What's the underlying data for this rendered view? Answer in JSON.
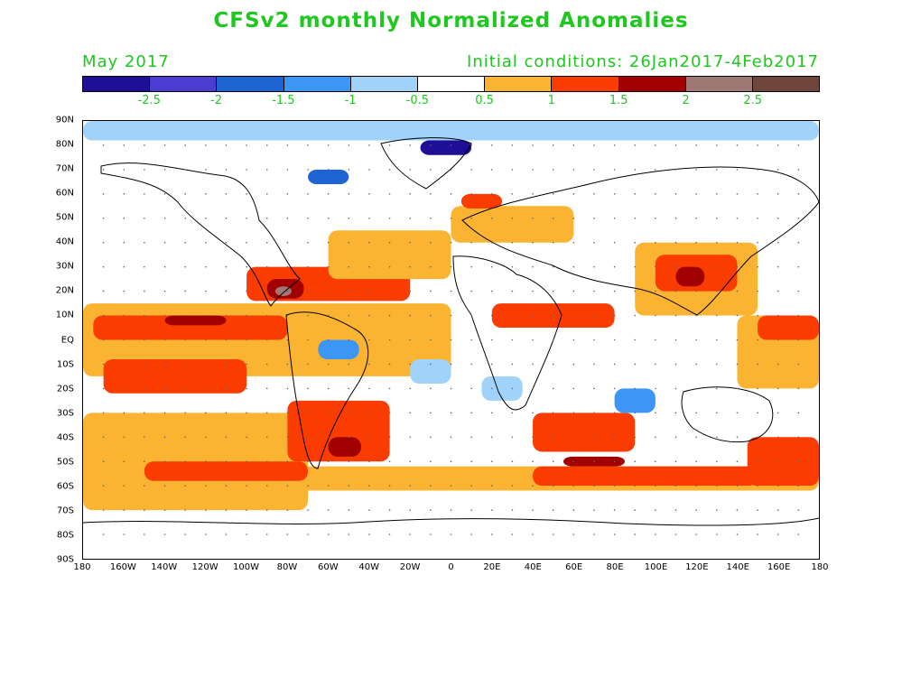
{
  "title": "CFSv2 monthly Normalized Anomalies",
  "valid_month": "May 2017",
  "initial_conditions": "Initial conditions: 26Jan2017-4Feb2017",
  "colorbar": {
    "colors": [
      "#1e0f96",
      "#4b3cd2",
      "#1e64d2",
      "#3c96f5",
      "#a0d2fa",
      "#ffffff",
      "#fab432",
      "#fa3c00",
      "#a00000",
      "#a07873",
      "#6e463c"
    ],
    "labels": [
      "-2.5",
      "-2",
      "-1.5",
      "-1",
      "-0.5",
      "0.5",
      "1",
      "1.5",
      "2",
      "2.5"
    ]
  },
  "axes": {
    "lat_labels": [
      "90N",
      "80N",
      "70N",
      "60N",
      "50N",
      "40N",
      "30N",
      "20N",
      "10N",
      "EQ",
      "10S",
      "20S",
      "30S",
      "40S",
      "50S",
      "60S",
      "70S",
      "80S",
      "90S"
    ],
    "lon_labels": [
      "180",
      "160W",
      "140W",
      "120W",
      "100W",
      "80W",
      "60W",
      "40W",
      "20W",
      "0",
      "20E",
      "40E",
      "60E",
      "80E",
      "100E",
      "120E",
      "140E",
      "160E",
      "180"
    ]
  },
  "anomaly_regions": [
    {
      "level": 0.5,
      "color": "#fab432",
      "lon": -180,
      "lat": 15,
      "w": 180,
      "h": 30
    },
    {
      "level": 1,
      "color": "#fa3c00",
      "lon": -175,
      "lat": 10,
      "w": 95,
      "h": 10
    },
    {
      "level": 0.5,
      "color": "#fab432",
      "lon": -180,
      "lat": -30,
      "w": 110,
      "h": 40
    },
    {
      "level": 1,
      "color": "#fa3c00",
      "lon": -170,
      "lat": -8,
      "w": 70,
      "h": 14
    },
    {
      "level": 2,
      "color": "#a00000",
      "lon": -140,
      "lat": 10,
      "w": 30,
      "h": 4
    },
    {
      "level": 1,
      "color": "#fa3c00",
      "lon": -100,
      "lat": 30,
      "w": 80,
      "h": 14
    },
    {
      "level": 2,
      "color": "#a00000",
      "lon": -90,
      "lat": 25,
      "w": 18,
      "h": 8
    },
    {
      "level": 2.5,
      "color": "#a07873",
      "lon": -86,
      "lat": 22,
      "w": 8,
      "h": 4
    },
    {
      "level": 0.5,
      "color": "#fab432",
      "lon": -60,
      "lat": 45,
      "w": 60,
      "h": 20
    },
    {
      "level": 1,
      "color": "#fa3c00",
      "lon": -80,
      "lat": -25,
      "w": 50,
      "h": 25
    },
    {
      "level": 2,
      "color": "#a00000",
      "lon": -60,
      "lat": -40,
      "w": 16,
      "h": 8
    },
    {
      "level": 0.5,
      "color": "#fab432",
      "lon": -180,
      "lat": -52,
      "w": 360,
      "h": 10
    },
    {
      "level": 1,
      "color": "#fa3c00",
      "lon": -150,
      "lat": -50,
      "w": 80,
      "h": 8
    },
    {
      "level": 1,
      "color": "#fa3c00",
      "lon": 40,
      "lat": -30,
      "w": 50,
      "h": 16
    },
    {
      "level": 1,
      "color": "#fa3c00",
      "lon": 40,
      "lat": -52,
      "w": 110,
      "h": 8
    },
    {
      "level": 2,
      "color": "#a00000",
      "lon": 55,
      "lat": -48,
      "w": 30,
      "h": 4
    },
    {
      "level": 1,
      "color": "#fa3c00",
      "lon": 20,
      "lat": 15,
      "w": 60,
      "h": 10
    },
    {
      "level": 0.5,
      "color": "#fab432",
      "lon": 90,
      "lat": 40,
      "w": 60,
      "h": 30
    },
    {
      "level": 1,
      "color": "#fa3c00",
      "lon": 100,
      "lat": 35,
      "w": 40,
      "h": 15
    },
    {
      "level": 2,
      "color": "#a00000",
      "lon": 110,
      "lat": 30,
      "w": 14,
      "h": 8
    },
    {
      "level": 0.5,
      "color": "#fab432",
      "lon": 140,
      "lat": 10,
      "w": 40,
      "h": 30
    },
    {
      "level": 1,
      "color": "#fa3c00",
      "lon": 150,
      "lat": 10,
      "w": 30,
      "h": 10
    },
    {
      "level": 1,
      "color": "#fa3c00",
      "lon": 145,
      "lat": -40,
      "w": 35,
      "h": 20
    },
    {
      "level": 0.5,
      "color": "#fab432",
      "lon": 0,
      "lat": 55,
      "w": 60,
      "h": 15
    },
    {
      "level": 1,
      "color": "#fa3c00",
      "lon": 5,
      "lat": 60,
      "w": 20,
      "h": 6
    },
    {
      "level": -0.5,
      "color": "#a0d2fa",
      "lon": -180,
      "lat": 90,
      "w": 360,
      "h": 8
    },
    {
      "level": -2.5,
      "color": "#1e0f96",
      "lon": -15,
      "lat": 82,
      "w": 25,
      "h": 6
    },
    {
      "level": -1.5,
      "color": "#1e64d2",
      "lon": -70,
      "lat": 70,
      "w": 20,
      "h": 6
    },
    {
      "level": -1,
      "color": "#3c96f5",
      "lon": -65,
      "lat": 0,
      "w": 20,
      "h": 8
    },
    {
      "level": -0.5,
      "color": "#a0d2fa",
      "lon": -20,
      "lat": -8,
      "w": 20,
      "h": 10
    },
    {
      "level": -1,
      "color": "#3c96f5",
      "lon": 80,
      "lat": -20,
      "w": 20,
      "h": 10
    },
    {
      "level": -0.5,
      "color": "#a0d2fa",
      "lon": 15,
      "lat": -15,
      "w": 20,
      "h": 10
    }
  ]
}
